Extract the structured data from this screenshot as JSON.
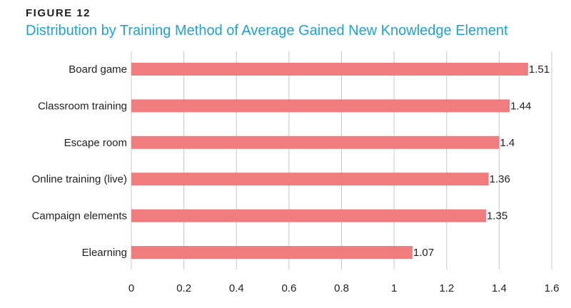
{
  "figure_label": "FIGURE 12",
  "chart_data": {
    "type": "bar",
    "orientation": "horizontal",
    "title": "Distribution by Training Method of Average Gained New Knowledge Element",
    "categories": [
      "Board game",
      "Classroom training",
      "Escape room",
      "Online training (live)",
      "Campaign elements",
      "Elearning"
    ],
    "values": [
      1.51,
      1.44,
      1.4,
      1.36,
      1.35,
      1.07
    ],
    "value_labels": [
      "1.51",
      "1.44",
      "1.4",
      "1.36",
      "1.35",
      "1.07"
    ],
    "xlim": [
      0,
      1.6
    ],
    "xticks": [
      0,
      0.2,
      0.4,
      0.6,
      0.8,
      1,
      1.2,
      1.4,
      1.6
    ],
    "xtick_labels": [
      "0",
      "0.2",
      "0.4",
      "0.6",
      "0.8",
      "1",
      "1.2",
      "1.4",
      "1.6"
    ],
    "grid": true,
    "bar_color": "#f07c7f",
    "grid_color": "#c8c8c8",
    "xlabel": "",
    "ylabel": ""
  }
}
